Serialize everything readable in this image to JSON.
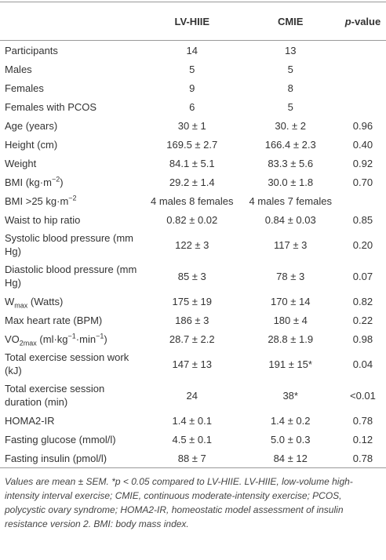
{
  "table": {
    "header": [
      "LV-HIIE",
      "CMIE",
      [
        {
          "em": "p"
        },
        "-value"
      ]
    ],
    "rows": [
      [
        "Participants",
        "14",
        "13",
        null
      ],
      [
        "Males",
        "5",
        "5",
        null
      ],
      [
        "Females",
        "9",
        "8",
        null
      ],
      [
        "Females with PCOS",
        "6",
        "5",
        null
      ],
      [
        "Age (years)",
        "30 ± 1",
        "30. ± 2",
        "0.96"
      ],
      [
        "Height (cm)",
        "169.5 ± 2.7",
        "166.4 ± 2.3",
        "0.40"
      ],
      [
        "Weight",
        "84.1 ± 5.1",
        "83.3 ± 5.6",
        "0.92"
      ],
      [
        [
          "BMI (kg·m",
          {
            "sup": "−2"
          },
          ")"
        ],
        "29.2 ± 1.4",
        "30.0 ± 1.8",
        "0.70"
      ],
      [
        [
          "BMI >25 kg·m",
          {
            "sup": "−2"
          }
        ],
        "4 males 8 females",
        "4 males 7 females",
        null
      ],
      [
        "Waist to hip ratio",
        "0.82 ± 0.02",
        "0.84 ± 0.03",
        "0.85"
      ],
      [
        "Systolic blood pressure (mm Hg)",
        "122 ± 3",
        "117 ± 3",
        "0.20"
      ],
      [
        "Diastolic blood pressure (mm Hg)",
        "85 ± 3",
        "78 ± 3",
        "0.07"
      ],
      [
        [
          "W",
          {
            "sub": "max"
          },
          " (Watts)"
        ],
        "175 ± 19",
        "170 ± 14",
        "0.82"
      ],
      [
        "Max heart rate (BPM)",
        "186 ± 3",
        "180 ± 4",
        "0.22"
      ],
      [
        [
          "VO",
          {
            "sub": "2max"
          },
          " (ml·kg",
          {
            "sup": "−1"
          },
          "·min",
          {
            "sup": "−1"
          },
          ")"
        ],
        "28.7 ± 2.2",
        "28.8 ± 1.9",
        "0.98"
      ],
      [
        "Total exercise session work (kJ)",
        "147 ± 13",
        "191 ± 15*",
        "0.04"
      ],
      [
        "Total exercise session duration (min)",
        "24",
        "38*",
        "<0.01"
      ],
      [
        "HOMA2-IR",
        "1.4 ± 0.1",
        "1.4 ± 0.2",
        "0.78"
      ],
      [
        "Fasting glucose (mmol/l)",
        "4.5 ± 0.1",
        "5.0 ± 0.3",
        "0.12"
      ],
      [
        "Fasting insulin (pmol/l)",
        "88 ± 7",
        "84 ± 12",
        "0.78"
      ]
    ],
    "footnote": "Values are mean ± SEM. *p < 0.05 compared to LV-HIIE. LV-HIIE, low-volume high-intensity interval exercise; CMIE, continuous moderate-intensity exercise; PCOS, polycystic ovary syndrome; HOMA2-IR, homeostatic model assessment of insulin resistance version 2. BMI: body mass index."
  }
}
